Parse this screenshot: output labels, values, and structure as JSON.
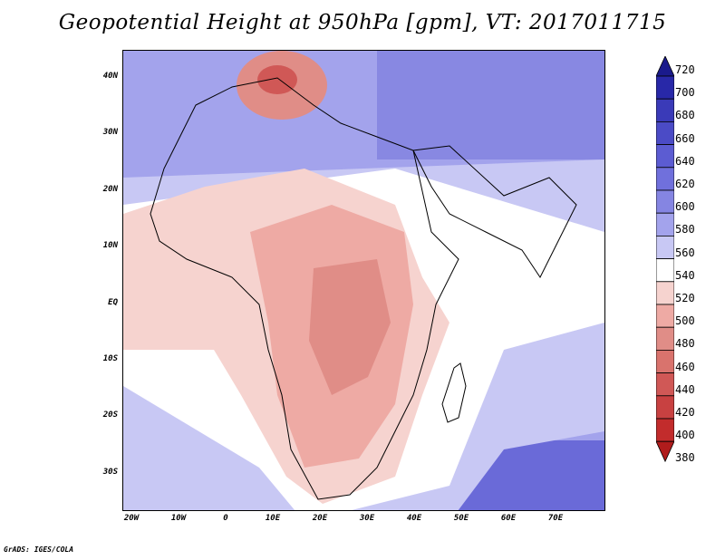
{
  "title": "Geopotential Height at 950hPa [gpm], VT: 2017011715",
  "credit": "GrADS: IGES/COLA",
  "map": {
    "lat_labels": [
      "40N",
      "30N",
      "20N",
      "10N",
      "EQ",
      "10S",
      "20S",
      "30S"
    ],
    "lon_labels": [
      "20W",
      "10W",
      "0",
      "10E",
      "20E",
      "30E",
      "40E",
      "50E",
      "60E",
      "70E"
    ]
  },
  "colorbar": {
    "levels": [
      "720",
      "700",
      "680",
      "660",
      "640",
      "620",
      "600",
      "580",
      "560",
      "540",
      "520",
      "500",
      "480",
      "460",
      "440",
      "420",
      "400",
      "380"
    ],
    "colors": [
      "#1a1a8c",
      "#2828a8",
      "#3a3ab8",
      "#4b4bc6",
      "#5c5cd2",
      "#7070dc",
      "#8585e2",
      "#a3a3ec",
      "#c8c8f4",
      "#ffffff",
      "#f6d3cf",
      "#eeaaa4",
      "#e08d87",
      "#d9736d",
      "#d05856",
      "#c84141",
      "#c22c2c",
      "#b01c1c"
    ]
  }
}
